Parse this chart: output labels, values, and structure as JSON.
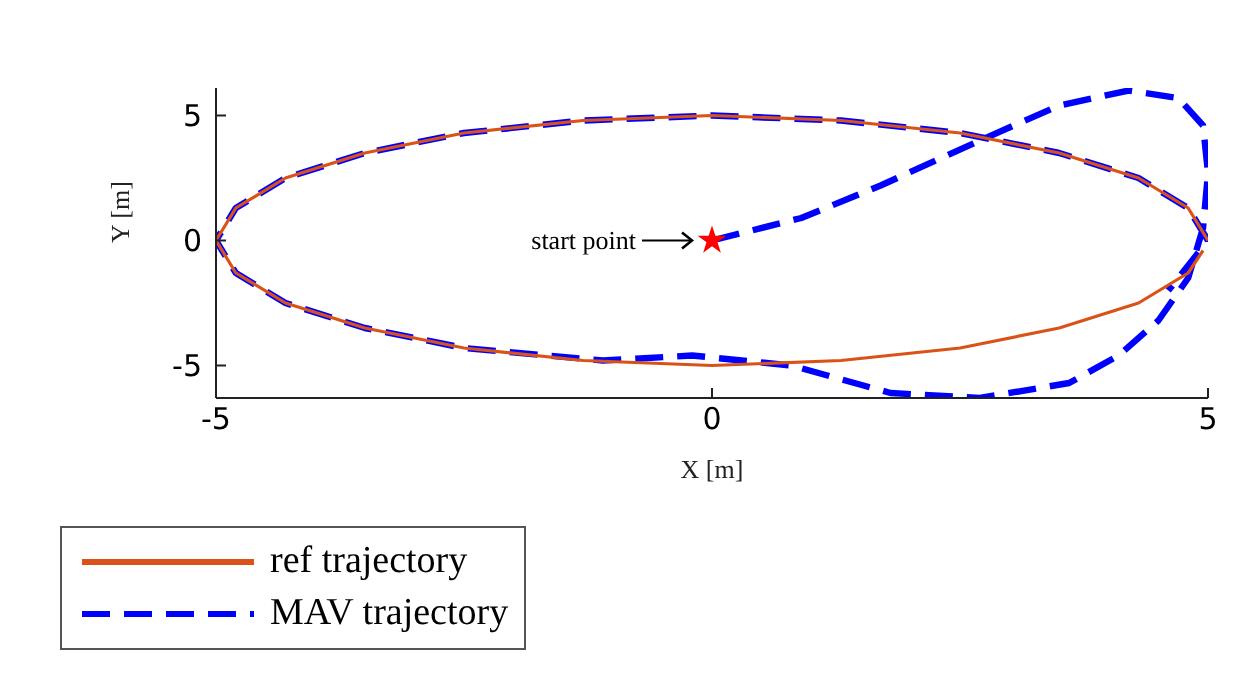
{
  "chart_data": {
    "type": "line",
    "xlabel": "X [m]",
    "ylabel": "Y [m]",
    "xlim": [
      -5,
      5
    ],
    "xticks": [
      -5,
      0,
      5
    ],
    "ylim": [
      -6.3,
      6.1
    ],
    "yticks": [
      -5,
      0,
      5
    ],
    "grid": false,
    "legend": "bottom left",
    "annotations": [
      {
        "text": "start point",
        "x": 0,
        "y": 0
      }
    ],
    "series": [
      {
        "type": "scatter",
        "color": "#ff0000",
        "marker": "star",
        "x": [
          0
        ],
        "values": [
          0
        ]
      },
      {
        "name": "MAV trajectory",
        "color": "#0000ff",
        "line_style": "dashed",
        "x": [
          0,
          0.9,
          1.7,
          2.7,
          3.5,
          4.2,
          4.7,
          4.95,
          5,
          4.95,
          4.8,
          4.5,
          4.1,
          3.6,
          2.7,
          1.8,
          0.8,
          -0.2,
          -1.1,
          -2.5,
          -3.5,
          -4.3,
          -4.8,
          -5,
          -4.8,
          -4.3,
          -3.5,
          -2.5,
          -1.3,
          0,
          1.3,
          2.5,
          3.5,
          4.3,
          4.8,
          5,
          4.6
        ],
        "values": [
          0,
          0.9,
          2.2,
          4,
          5.4,
          6,
          5.7,
          4.6,
          2.7,
          0.5,
          -1.5,
          -3.2,
          -4.6,
          -5.7,
          -6.3,
          -6.1,
          -5,
          -4.6,
          -4.8,
          -4.3,
          -3.5,
          -2.5,
          -1.3,
          0,
          1.3,
          2.5,
          3.5,
          4.3,
          4.8,
          5,
          4.8,
          4.3,
          3.5,
          2.5,
          1.3,
          0,
          -2
        ]
      },
      {
        "name": "ref trajectory",
        "color": "#d95319",
        "line_style": "solid",
        "x": [
          5,
          4.8,
          4.3,
          3.5,
          2.5,
          1.3,
          0,
          -1.3,
          -2.5,
          -3.5,
          -4.3,
          -4.8,
          -5,
          -4.8,
          -4.3,
          -3.5,
          -2.5,
          -1.3,
          0,
          1.3,
          2.5,
          3.5,
          4.3,
          4.8,
          4.95
        ],
        "values": [
          0,
          1.3,
          2.5,
          3.5,
          4.3,
          4.8,
          5,
          4.8,
          4.3,
          3.5,
          2.5,
          1.3,
          0,
          -1.3,
          -2.5,
          -3.5,
          -4.3,
          -4.8,
          -5,
          -4.8,
          -4.3,
          -3.5,
          -2.5,
          -1.3,
          -0.4
        ]
      }
    ]
  }
}
